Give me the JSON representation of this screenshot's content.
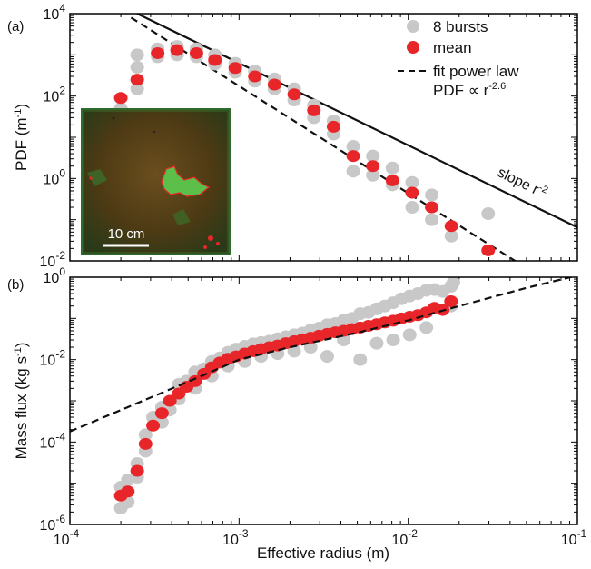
{
  "chart_data": [
    {
      "panel": "(a)",
      "type": "scatter",
      "title": "",
      "xlabel": "",
      "ylabel": "PDF (m",
      "ylabel_sup": "-1",
      "ylabel_end": ")",
      "xscale": "log",
      "yscale": "log",
      "xlim": [
        0.0001,
        0.1
      ],
      "ylim": [
        0.01,
        10000
      ],
      "y_ticks": [
        {
          "base": "10",
          "exp": "-2",
          "value": 0.01
        },
        {
          "base": "10",
          "exp": "0",
          "value": 1
        },
        {
          "base": "10",
          "exp": "2",
          "value": 100
        },
        {
          "base": "10",
          "exp": "4",
          "value": 10000
        }
      ],
      "grid": false,
      "legend_position": "top-right",
      "legend": [
        {
          "label": "8 bursts",
          "marker": "gray-dot"
        },
        {
          "label": "mean",
          "marker": "red-dot"
        },
        {
          "label": "fit power law",
          "marker": "dashed-line"
        }
      ],
      "fit_label": "PDF ∝ r",
      "fit_label_sup": "-2.6",
      "slope_label": "slope r",
      "slope_label_sup": "-2",
      "inset_scale_label": "10 cm",
      "series": [
        {
          "name": "mean",
          "color": "#e8262a",
          "x": [
            0.0002,
            0.00025,
            0.00033,
            0.00043,
            0.00056,
            0.00072,
            0.00095,
            0.00124,
            0.00162,
            0.00212,
            0.00277,
            0.00362,
            0.00473,
            0.00618,
            0.00807,
            0.01055,
            0.01378,
            0.018,
            0.0297
          ],
          "y": [
            90,
            250,
            1100,
            1300,
            1100,
            750,
            480,
            300,
            190,
            110,
            45,
            18,
            3.5,
            2,
            0.9,
            0.45,
            0.2,
            0.07,
            0.018
          ]
        },
        {
          "name": "8 bursts",
          "color": "#c8c8c8",
          "x": [
            0.0002,
            0.0002,
            0.00025,
            0.00025,
            0.00025,
            0.00033,
            0.00033,
            0.00043,
            0.00043,
            0.00056,
            0.00056,
            0.00072,
            0.00072,
            0.00095,
            0.00095,
            0.00124,
            0.00124,
            0.00162,
            0.00162,
            0.00212,
            0.00212,
            0.00277,
            0.00277,
            0.00362,
            0.00362,
            0.00473,
            0.00473,
            0.00618,
            0.00618,
            0.00807,
            0.00807,
            0.01055,
            0.01055,
            0.01378,
            0.01378,
            0.018,
            0.0297
          ],
          "y": [
            30,
            50,
            150,
            500,
            1000,
            900,
            1400,
            1000,
            1600,
            900,
            1400,
            600,
            1000,
            380,
            620,
            230,
            400,
            150,
            260,
            80,
            150,
            30,
            60,
            12,
            25,
            1.5,
            6,
            1.2,
            3.5,
            0.7,
            1.8,
            0.2,
            0.8,
            0.1,
            0.4,
            0.04,
            0.14
          ]
        },
        {
          "name": "fit power law",
          "style": "dashed",
          "x": [
            0.00023,
            0.055
          ],
          "y": [
            8000,
            0.0052
          ]
        },
        {
          "name": "slope r-2",
          "style": "solid",
          "x": [
            0.00025,
            0.1
          ],
          "y": [
            10000,
            0.065
          ]
        }
      ]
    },
    {
      "panel": "(b)",
      "type": "scatter",
      "title": "",
      "xlabel": "Effective radius (m)",
      "ylabel": "Mass flux (kg s",
      "ylabel_sup": "-1",
      "ylabel_end": ")",
      "xscale": "log",
      "yscale": "log",
      "xlim": [
        0.0001,
        0.1
      ],
      "ylim": [
        1e-06,
        1
      ],
      "x_ticks": [
        {
          "base": "10",
          "exp": "-4",
          "value": 0.0001
        },
        {
          "base": "10",
          "exp": "-3",
          "value": 0.001
        },
        {
          "base": "10",
          "exp": "-2",
          "value": 0.01
        },
        {
          "base": "10",
          "exp": "-1",
          "value": 0.1
        }
      ],
      "y_ticks": [
        {
          "base": "10",
          "exp": "-6",
          "value": 1e-06
        },
        {
          "base": "10",
          "exp": "-4",
          "value": 0.0001
        },
        {
          "base": "10",
          "exp": "-2",
          "value": 0.01
        },
        {
          "base": "10",
          "exp": "0",
          "value": 1
        }
      ],
      "grid": false,
      "series": [
        {
          "name": "mean",
          "color": "#e8262a",
          "x": [
            0.0002,
            0.00022,
            0.00025,
            0.00028,
            0.00031,
            0.00035,
            0.00039,
            0.00044,
            0.00049,
            0.00055,
            0.00062,
            0.00069,
            0.00077,
            0.00086,
            0.00096,
            0.00108,
            0.00121,
            0.00135,
            0.00151,
            0.00169,
            0.00189,
            0.00212,
            0.00237,
            0.00265,
            0.00297,
            0.00332,
            0.00371,
            0.00415,
            0.00465,
            0.0052,
            0.00582,
            0.00651,
            0.00728,
            0.00815,
            0.00912,
            0.0102,
            0.0114,
            0.0128,
            0.0143,
            0.016,
            0.0179
          ],
          "y": [
            5e-06,
            6.3e-06,
            2e-05,
            9e-05,
            0.00025,
            0.0005,
            0.001,
            0.0015,
            0.0022,
            0.003,
            0.0045,
            0.0065,
            0.0085,
            0.0105,
            0.012,
            0.014,
            0.016,
            0.018,
            0.02,
            0.022,
            0.025,
            0.028,
            0.031,
            0.034,
            0.038,
            0.042,
            0.046,
            0.05,
            0.055,
            0.06,
            0.066,
            0.072,
            0.08,
            0.088,
            0.1,
            0.11,
            0.12,
            0.14,
            0.18,
            0.16,
            0.26
          ]
        },
        {
          "name": "8 bursts",
          "color": "#c8c8c8",
          "x": [
            0.0002,
            0.0002,
            0.00022,
            0.00022,
            0.00025,
            0.00025,
            0.00028,
            0.00028,
            0.00031,
            0.00035,
            0.00035,
            0.00039,
            0.00044,
            0.00044,
            0.00049,
            0.00055,
            0.00055,
            0.00062,
            0.00069,
            0.00069,
            0.00077,
            0.00086,
            0.00086,
            0.00096,
            0.00108,
            0.00108,
            0.00121,
            0.00135,
            0.00135,
            0.00151,
            0.00169,
            0.00169,
            0.00189,
            0.00212,
            0.00212,
            0.00237,
            0.00265,
            0.00265,
            0.00297,
            0.00332,
            0.00332,
            0.00371,
            0.00415,
            0.00415,
            0.00465,
            0.0052,
            0.0052,
            0.00582,
            0.00651,
            0.00651,
            0.00728,
            0.00815,
            0.00815,
            0.00912,
            0.0102,
            0.0102,
            0.0114,
            0.0128,
            0.0128,
            0.0143,
            0.016,
            0.0179,
            0.0179,
            0.0185
          ],
          "y": [
            2.5e-06,
            8e-06,
            3.5e-06,
            1.2e-05,
            1.4e-05,
            3e-05,
            6e-05,
            0.00015,
            0.0004,
            0.0007,
            0.0003,
            0.0006,
            0.0011,
            0.0025,
            0.003,
            0.002,
            0.005,
            0.006,
            0.004,
            0.009,
            0.011,
            0.007,
            0.015,
            0.018,
            0.009,
            0.021,
            0.024,
            0.012,
            0.026,
            0.028,
            0.014,
            0.032,
            0.036,
            0.016,
            0.04,
            0.044,
            0.02,
            0.052,
            0.058,
            0.012,
            0.07,
            0.075,
            0.03,
            0.09,
            0.1,
            0.01,
            0.13,
            0.14,
            0.025,
            0.17,
            0.2,
            0.03,
            0.24,
            0.3,
            0.04,
            0.35,
            0.4,
            0.06,
            0.48,
            0.5,
            0.45,
            0.6,
            0.2,
            0.75
          ]
        },
        {
          "name": "fit power law",
          "style": "dashed",
          "x": [
            0.0001,
            0.0003,
            0.0006,
            0.001,
            0.002,
            0.005,
            0.01,
            0.02,
            0.05,
            0.1
          ],
          "y": [
            0.00018,
            0.0012,
            0.004,
            0.01,
            0.02,
            0.045,
            0.09,
            0.2,
            0.55,
            1.1
          ]
        }
      ]
    }
  ]
}
